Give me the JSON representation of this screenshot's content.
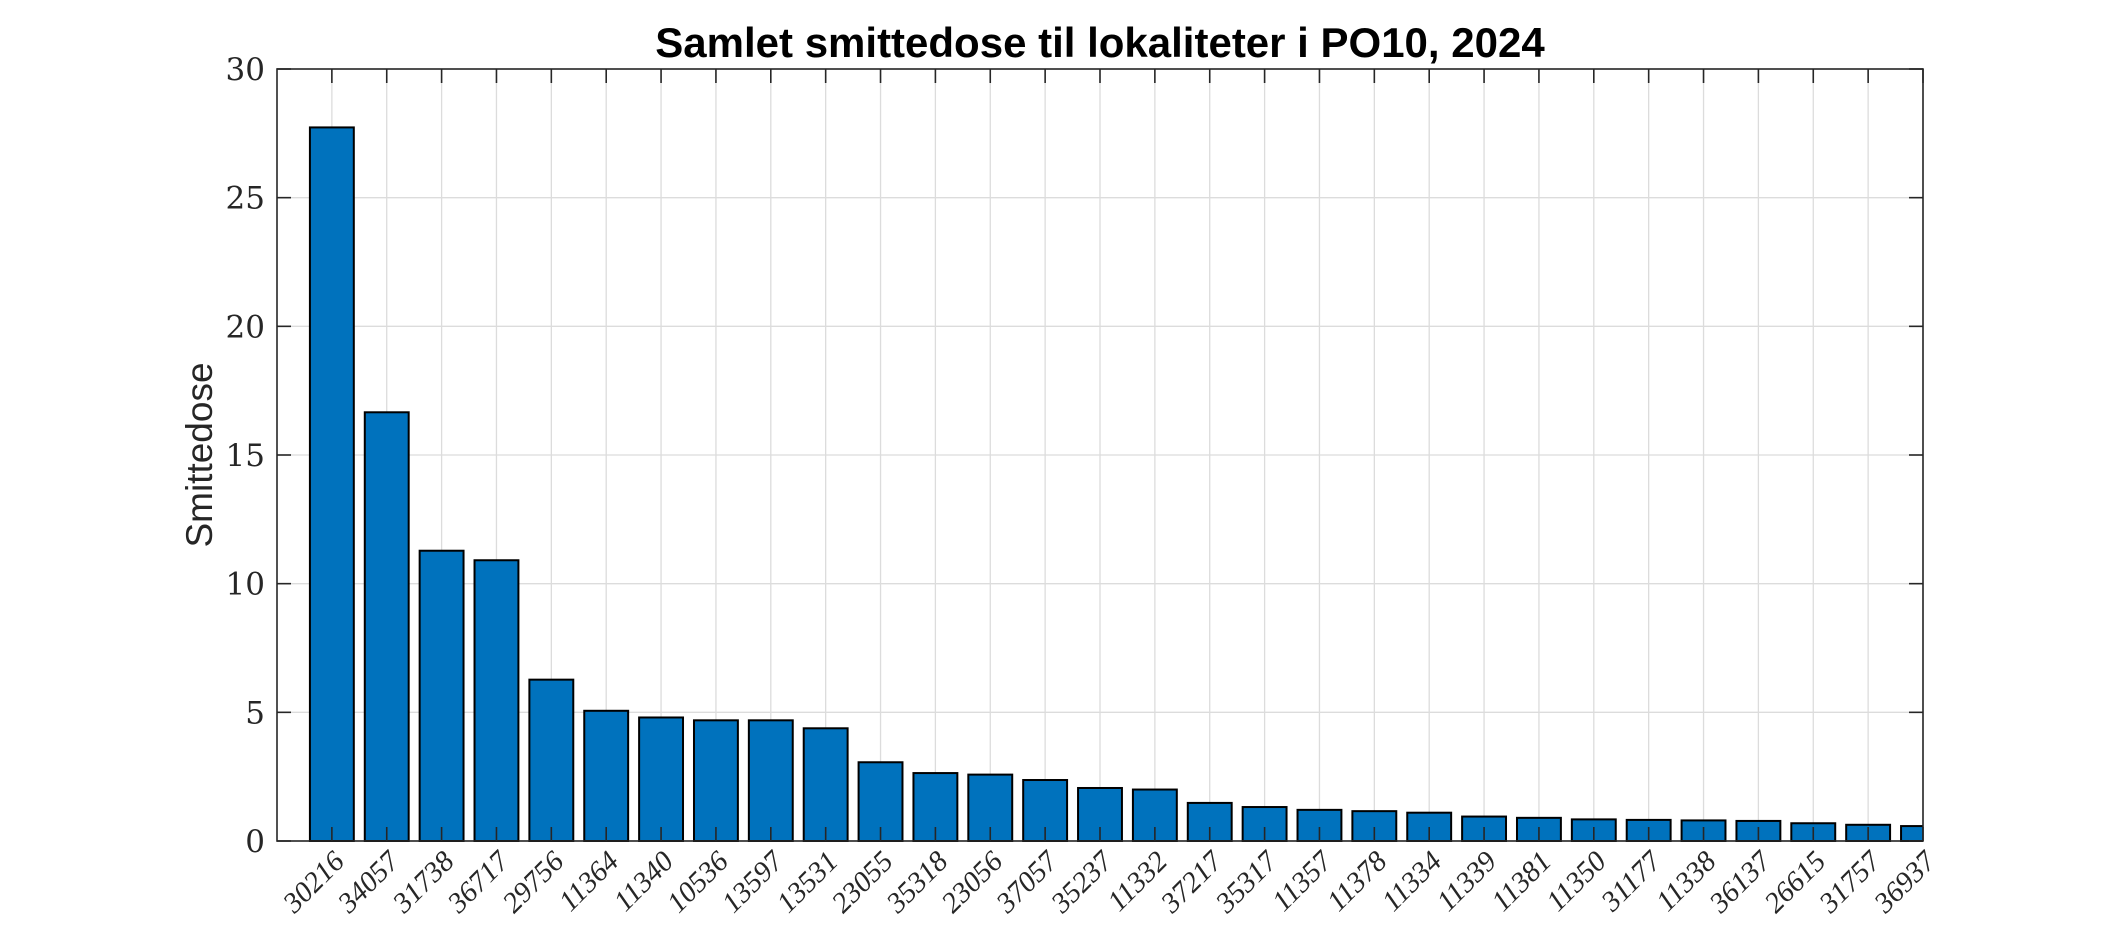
{
  "chart_data": {
    "type": "bar",
    "title": "Samlet smittedose til lokaliteter i PO10, 2024",
    "xlabel": "",
    "ylabel": "Smittedose",
    "ylim": [
      0,
      30
    ],
    "yticks": [
      0,
      5,
      10,
      15,
      20,
      25,
      30
    ],
    "grid": true,
    "bar_color": "#0072BD",
    "categories": [
      "30216",
      "34057",
      "31738",
      "36717",
      "29756",
      "11364",
      "11340",
      "10536",
      "13597",
      "13531",
      "23055",
      "35318",
      "23056",
      "37057",
      "35237",
      "11332",
      "37217",
      "35317",
      "11357",
      "11378",
      "11334",
      "11339",
      "11381",
      "11350",
      "31177",
      "11338",
      "36137",
      "26615",
      "31757",
      "36937"
    ],
    "values": [
      27.73,
      16.66,
      11.28,
      10.91,
      6.27,
      5.06,
      4.8,
      4.69,
      4.69,
      4.38,
      3.06,
      2.64,
      2.58,
      2.37,
      2.06,
      2.0,
      1.48,
      1.32,
      1.21,
      1.16,
      1.1,
      0.95,
      0.9,
      0.84,
      0.82,
      0.8,
      0.78,
      0.69,
      0.63,
      0.58
    ]
  }
}
